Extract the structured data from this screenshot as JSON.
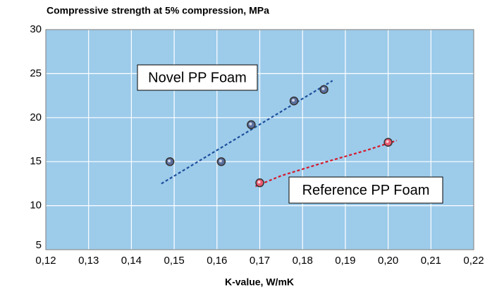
{
  "chart_data": {
    "type": "scatter",
    "title": "Compressive strength at 5% compression, MPa",
    "x_label": "K-value, W/mK",
    "xlim": [
      0.12,
      0.22
    ],
    "xticks": [
      {
        "value": 0.12,
        "label": "0,12"
      },
      {
        "value": 0.13,
        "label": "0,13"
      },
      {
        "value": 0.14,
        "label": "0,14"
      },
      {
        "value": 0.15,
        "label": "0,15"
      },
      {
        "value": 0.16,
        "label": "0,16"
      },
      {
        "value": 0.17,
        "label": "0,17"
      },
      {
        "value": 0.18,
        "label": "0,18"
      },
      {
        "value": 0.19,
        "label": "0,19"
      },
      {
        "value": 0.2,
        "label": "0,20"
      },
      {
        "value": 0.21,
        "label": "0,21"
      },
      {
        "value": 0.22,
        "label": "0,22"
      }
    ],
    "ylim": [
      5,
      30
    ],
    "yticks": [
      5,
      10,
      15,
      20,
      25,
      30
    ],
    "grid": true,
    "background": "#9dcbea",
    "series": [
      {
        "name": "Novel PP Foam",
        "color": "#5b6f9e",
        "trend_color": "#1c4f9c",
        "x": [
          0.149,
          0.161,
          0.168,
          0.178,
          0.185
        ],
        "values": [
          15.0,
          15.0,
          19.2,
          21.9,
          23.2
        ],
        "trend": {
          "x": [
            0.147,
            0.187
          ],
          "y": [
            12.5,
            24.2
          ]
        }
      },
      {
        "name": "Reference PP Foam",
        "color": "#e85a70",
        "trend_color": "#d4182a",
        "x": [
          0.17,
          0.2
        ],
        "values": [
          12.6,
          17.2
        ],
        "trend": {
          "x": [
            0.169,
            0.175,
            0.185,
            0.195,
            0.202
          ],
          "y": [
            12.2,
            13.4,
            14.9,
            16.3,
            17.4
          ]
        }
      }
    ]
  }
}
